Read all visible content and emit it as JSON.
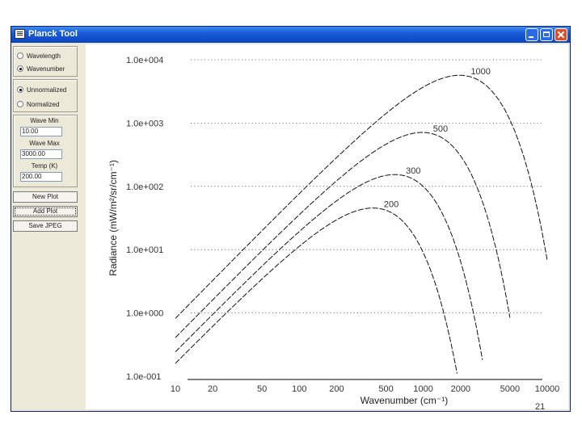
{
  "window": {
    "title": "Planck Tool"
  },
  "controls": {
    "mode_options": [
      {
        "label": "Wavelength",
        "selected": false
      },
      {
        "label": "Wavenumber",
        "selected": true
      }
    ],
    "norm_options": [
      {
        "label": "Unnormalized",
        "selected": true
      },
      {
        "label": "Normalized",
        "selected": false
      }
    ],
    "wave_min": {
      "label": "Wave Min",
      "value": "10.00"
    },
    "wave_max": {
      "label": "Wave Max",
      "value": "3000.00"
    },
    "temp": {
      "label": "Temp (K)",
      "value": "200.00"
    },
    "buttons": {
      "new_plot": "New Plot",
      "add_plot": "Add Plot",
      "save_jpeg": "Save JPEG"
    }
  },
  "chart_data": {
    "type": "line",
    "title": "",
    "xlabel": "Wavenumber (cm⁻¹)",
    "ylabel": "Radiance (mW/m²/sr/cm⁻¹)",
    "xscale": "log",
    "yscale": "log",
    "xlim": [
      10,
      10000
    ],
    "ylim": [
      0.1,
      10000.0
    ],
    "xticks": [
      10,
      20,
      50,
      100,
      200,
      500,
      1000,
      2000,
      5000,
      10000
    ],
    "xtick_labels": [
      "10",
      "20",
      "50",
      "100",
      "200",
      "500",
      "1000",
      "2000",
      "5000",
      "10000"
    ],
    "yticks": [
      0.1,
      1.0,
      10.0,
      100.0,
      1000.0,
      10000.0
    ],
    "ytick_labels": [
      "1.0e-001",
      "1.0e+000",
      "1.0e+001",
      "1.0e+002",
      "1.0e+003",
      "1.0e+004"
    ],
    "grid": "horizontal dotted",
    "series": [
      {
        "name": "200",
        "temperature_K": 200,
        "x_range": [
          10,
          2000
        ]
      },
      {
        "name": "300",
        "temperature_K": 300,
        "x_range": [
          10,
          3000
        ]
      },
      {
        "name": "500",
        "temperature_K": 500,
        "x_range": [
          10,
          5000
        ]
      },
      {
        "name": "1000",
        "temperature_K": 1000,
        "x_range": [
          10,
          10000
        ]
      }
    ]
  },
  "footer": {
    "page_number": "21"
  }
}
